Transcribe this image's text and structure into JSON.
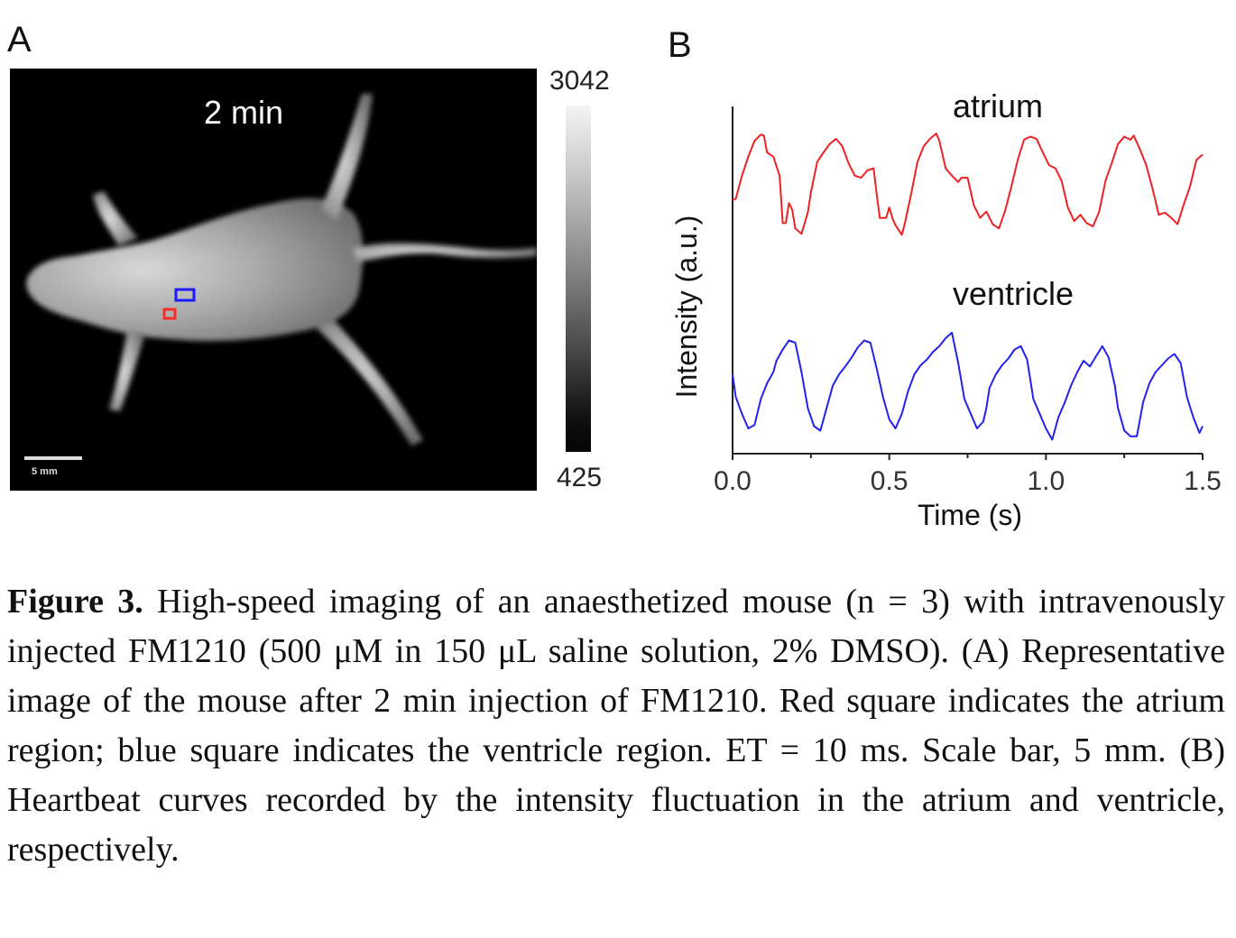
{
  "panel_a": {
    "label": "A",
    "time_label": "2 min",
    "scale_bar_label": "5 mm",
    "colorbar": {
      "max": "3042",
      "min": "425",
      "colormap": "grayscale"
    },
    "roi": [
      {
        "name": "atrium",
        "color": "#ff2a2a"
      },
      {
        "name": "ventricle",
        "color": "#1a1aff"
      }
    ]
  },
  "panel_b": {
    "label": "B"
  },
  "chart_data": {
    "type": "line",
    "title": "",
    "xlabel": "Time (s)",
    "ylabel": "Intensity (a.u.)",
    "xlim": [
      0,
      1.5
    ],
    "xticks": [
      "0.0",
      "0.5",
      "1.0",
      "1.5"
    ],
    "yticks": [],
    "grid": false,
    "legend": "none",
    "annotations": [
      "atrium",
      "ventricle"
    ],
    "series": [
      {
        "name": "atrium",
        "color": "#ee2222",
        "offset": 1.0,
        "x": [
          0.0,
          0.01,
          0.03,
          0.05,
          0.07,
          0.09,
          0.1,
          0.11,
          0.13,
          0.15,
          0.16,
          0.17,
          0.18,
          0.19,
          0.2,
          0.22,
          0.24,
          0.25,
          0.27,
          0.29,
          0.31,
          0.33,
          0.35,
          0.37,
          0.39,
          0.41,
          0.43,
          0.45,
          0.46,
          0.47,
          0.49,
          0.5,
          0.51,
          0.52,
          0.54,
          0.55,
          0.57,
          0.59,
          0.61,
          0.63,
          0.65,
          0.66,
          0.68,
          0.7,
          0.72,
          0.73,
          0.75,
          0.77,
          0.79,
          0.81,
          0.83,
          0.85,
          0.87,
          0.89,
          0.91,
          0.93,
          0.95,
          0.97,
          0.99,
          1.01,
          1.03,
          1.05,
          1.07,
          1.09,
          1.11,
          1.13,
          1.15,
          1.17,
          1.19,
          1.21,
          1.23,
          1.25,
          1.27,
          1.28,
          1.3,
          1.32,
          1.34,
          1.36,
          1.38,
          1.4,
          1.42,
          1.44,
          1.46,
          1.48,
          1.5
        ],
        "y": [
          0.37,
          0.38,
          0.6,
          0.78,
          0.93,
          0.99,
          0.98,
          0.82,
          0.78,
          0.6,
          0.15,
          0.15,
          0.34,
          0.28,
          0.1,
          0.05,
          0.25,
          0.44,
          0.73,
          0.82,
          0.9,
          0.95,
          0.88,
          0.72,
          0.6,
          0.58,
          0.65,
          0.67,
          0.42,
          0.2,
          0.2,
          0.3,
          0.2,
          0.13,
          0.04,
          0.15,
          0.43,
          0.73,
          0.88,
          0.95,
          1.0,
          0.93,
          0.67,
          0.6,
          0.54,
          0.58,
          0.58,
          0.32,
          0.2,
          0.26,
          0.14,
          0.1,
          0.27,
          0.5,
          0.75,
          0.94,
          0.97,
          0.95,
          0.82,
          0.7,
          0.67,
          0.55,
          0.3,
          0.17,
          0.23,
          0.15,
          0.12,
          0.26,
          0.55,
          0.72,
          0.9,
          0.97,
          0.94,
          0.98,
          0.85,
          0.7,
          0.48,
          0.23,
          0.25,
          0.2,
          0.14,
          0.33,
          0.5,
          0.75,
          0.8
        ]
      },
      {
        "name": "ventricle",
        "color": "#2222ee",
        "offset": 0.0,
        "x": [
          0.0,
          0.01,
          0.03,
          0.05,
          0.07,
          0.09,
          0.11,
          0.13,
          0.14,
          0.16,
          0.18,
          0.2,
          0.22,
          0.24,
          0.26,
          0.28,
          0.3,
          0.32,
          0.34,
          0.36,
          0.38,
          0.4,
          0.42,
          0.44,
          0.46,
          0.48,
          0.5,
          0.52,
          0.54,
          0.56,
          0.58,
          0.6,
          0.62,
          0.64,
          0.66,
          0.68,
          0.7,
          0.72,
          0.74,
          0.76,
          0.78,
          0.8,
          0.81,
          0.82,
          0.84,
          0.86,
          0.88,
          0.9,
          0.92,
          0.94,
          0.96,
          0.98,
          1.0,
          1.02,
          1.04,
          1.06,
          1.08,
          1.1,
          1.12,
          1.14,
          1.16,
          1.18,
          1.2,
          1.22,
          1.23,
          1.25,
          1.27,
          1.29,
          1.31,
          1.33,
          1.35,
          1.37,
          1.39,
          1.41,
          1.43,
          1.45,
          1.47,
          1.49,
          1.5
        ],
        "y": [
          0.6,
          0.4,
          0.25,
          0.12,
          0.15,
          0.38,
          0.52,
          0.62,
          0.72,
          0.82,
          0.9,
          0.88,
          0.62,
          0.3,
          0.14,
          0.1,
          0.3,
          0.5,
          0.6,
          0.67,
          0.75,
          0.84,
          0.9,
          0.88,
          0.65,
          0.4,
          0.2,
          0.12,
          0.25,
          0.45,
          0.6,
          0.68,
          0.73,
          0.8,
          0.85,
          0.92,
          0.97,
          0.7,
          0.38,
          0.25,
          0.12,
          0.18,
          0.3,
          0.48,
          0.6,
          0.68,
          0.74,
          0.82,
          0.85,
          0.73,
          0.38,
          0.25,
          0.12,
          0.02,
          0.22,
          0.35,
          0.5,
          0.62,
          0.72,
          0.67,
          0.76,
          0.85,
          0.75,
          0.5,
          0.3,
          0.1,
          0.05,
          0.05,
          0.35,
          0.52,
          0.62,
          0.68,
          0.74,
          0.78,
          0.7,
          0.4,
          0.22,
          0.08,
          0.14
        ]
      }
    ]
  },
  "caption": {
    "figure_label": "Figure 3.",
    "text": " High-speed imaging of an anaesthetized mouse (n = 3) with intravenously injected FM1210 (500 μM in 150 μL saline solution, 2% DMSO). (A) Representative image of the mouse after 2 min injection of FM1210. Red square indicates the atrium region; blue square indicates the ventricle region. ET = 10 ms. Scale bar, 5 mm. (B) Heartbeat curves recorded by the intensity fluctuation in the atrium and ventricle, respectively."
  }
}
